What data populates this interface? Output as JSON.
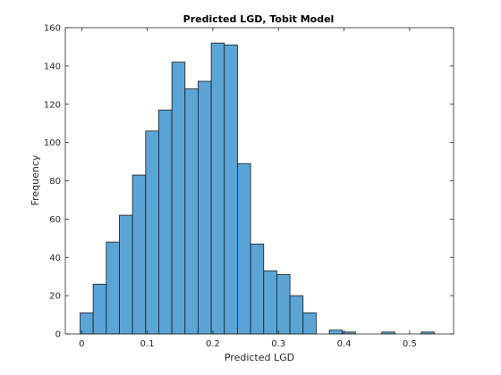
{
  "chart_data": {
    "type": "bar",
    "subtype": "histogram",
    "title": "Predicted LGD, Tobit Model",
    "xlabel": "Predicted LGD",
    "ylabel": "Frequency",
    "xlim": [
      -0.025,
      0.567
    ],
    "ylim": [
      0,
      160
    ],
    "xticks": [
      0,
      0.1,
      0.2,
      0.3,
      0.4,
      0.5
    ],
    "xtick_labels": [
      "0",
      "0.1",
      "0.2",
      "0.3",
      "0.4",
      "0.5"
    ],
    "yticks": [
      0,
      20,
      40,
      60,
      80,
      100,
      120,
      140,
      160
    ],
    "ytick_labels": [
      "0",
      "20",
      "40",
      "60",
      "80",
      "100",
      "120",
      "140",
      "160"
    ],
    "bin_edges": [
      -0.0025,
      0.0175,
      0.0375,
      0.0575,
      0.0775,
      0.0975,
      0.1175,
      0.1375,
      0.1575,
      0.1775,
      0.1975,
      0.2175,
      0.2375,
      0.2575,
      0.2775,
      0.2975,
      0.3175,
      0.3375,
      0.3575,
      0.3775,
      0.3975,
      0.4175,
      0.4375,
      0.4575,
      0.4775,
      0.4975,
      0.5175,
      0.5375
    ],
    "counts": [
      11,
      26,
      48,
      62,
      83,
      106,
      117,
      142,
      128,
      132,
      152,
      151,
      89,
      47,
      33,
      31,
      20,
      11,
      0,
      2,
      1,
      0,
      0,
      1,
      0,
      0,
      1
    ],
    "grid": false,
    "bar_color": "#5ba4d6",
    "edge_color": "#1a1a1a"
  }
}
